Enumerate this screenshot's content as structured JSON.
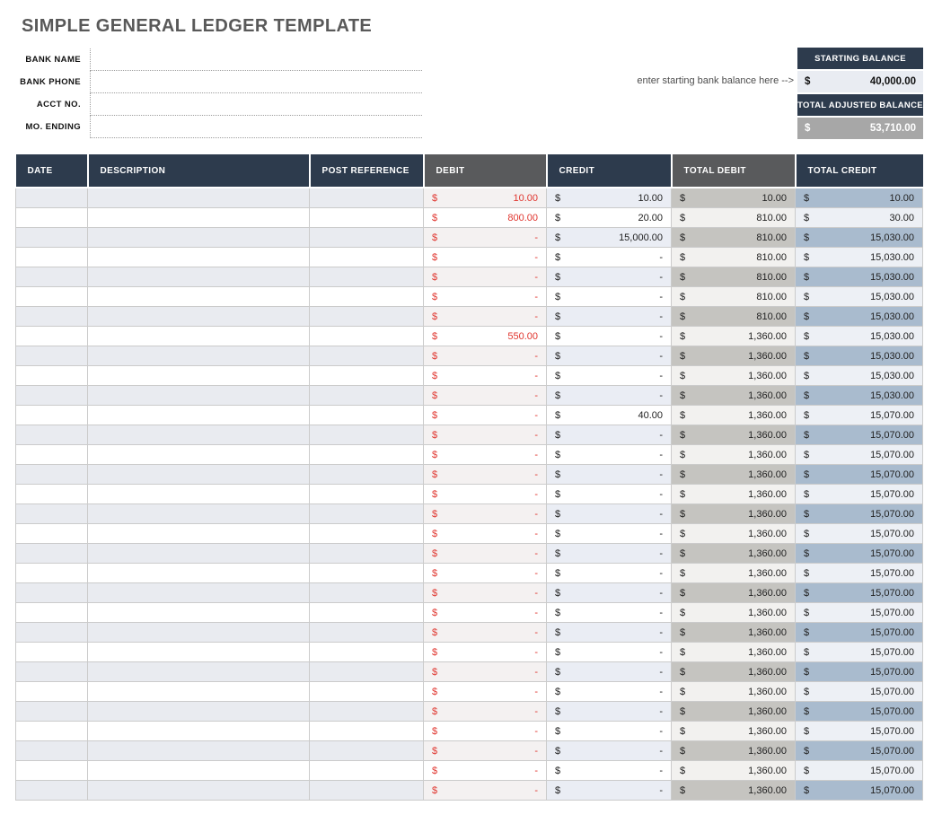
{
  "page_title": "SIMPLE GENERAL LEDGER TEMPLATE",
  "bank_info": {
    "fields": [
      {
        "label": "BANK NAME",
        "value": ""
      },
      {
        "label": "BANK PHONE",
        "value": ""
      },
      {
        "label": "ACCT NO.",
        "value": ""
      },
      {
        "label": "MO. ENDING",
        "value": ""
      }
    ]
  },
  "balance_panel": {
    "hint": "enter starting bank balance here -->",
    "starting": {
      "label": "STARTING BALANCE",
      "currency": "$",
      "value": "40,000.00"
    },
    "adjusted": {
      "label": "TOTAL ADJUSTED BALANCE",
      "currency": "$",
      "value": "53,710.00"
    }
  },
  "ledger_table": {
    "columns": [
      {
        "label": "DATE"
      },
      {
        "label": "DESCRIPTION"
      },
      {
        "label": "POST REFERENCE"
      },
      {
        "label": "DEBIT"
      },
      {
        "label": "CREDIT"
      },
      {
        "label": "TOTAL DEBIT"
      },
      {
        "label": "TOTAL CREDIT"
      }
    ],
    "currency": "$",
    "rows": [
      {
        "date": "",
        "description": "",
        "post_reference": "",
        "debit": "10.00",
        "credit": "10.00",
        "total_debit": "10.00",
        "total_credit": "10.00"
      },
      {
        "date": "",
        "description": "",
        "post_reference": "",
        "debit": "800.00",
        "credit": "20.00",
        "total_debit": "810.00",
        "total_credit": "30.00"
      },
      {
        "date": "",
        "description": "",
        "post_reference": "",
        "debit": "-",
        "credit": "15,000.00",
        "total_debit": "810.00",
        "total_credit": "15,030.00"
      },
      {
        "date": "",
        "description": "",
        "post_reference": "",
        "debit": "-",
        "credit": "-",
        "total_debit": "810.00",
        "total_credit": "15,030.00"
      },
      {
        "date": "",
        "description": "",
        "post_reference": "",
        "debit": "-",
        "credit": "-",
        "total_debit": "810.00",
        "total_credit": "15,030.00"
      },
      {
        "date": "",
        "description": "",
        "post_reference": "",
        "debit": "-",
        "credit": "-",
        "total_debit": "810.00",
        "total_credit": "15,030.00"
      },
      {
        "date": "",
        "description": "",
        "post_reference": "",
        "debit": "-",
        "credit": "-",
        "total_debit": "810.00",
        "total_credit": "15,030.00"
      },
      {
        "date": "",
        "description": "",
        "post_reference": "",
        "debit": "550.00",
        "credit": "-",
        "total_debit": "1,360.00",
        "total_credit": "15,030.00"
      },
      {
        "date": "",
        "description": "",
        "post_reference": "",
        "debit": "-",
        "credit": "-",
        "total_debit": "1,360.00",
        "total_credit": "15,030.00"
      },
      {
        "date": "",
        "description": "",
        "post_reference": "",
        "debit": "-",
        "credit": "-",
        "total_debit": "1,360.00",
        "total_credit": "15,030.00"
      },
      {
        "date": "",
        "description": "",
        "post_reference": "",
        "debit": "-",
        "credit": "-",
        "total_debit": "1,360.00",
        "total_credit": "15,030.00"
      },
      {
        "date": "",
        "description": "",
        "post_reference": "",
        "debit": "-",
        "credit": "40.00",
        "total_debit": "1,360.00",
        "total_credit": "15,070.00"
      },
      {
        "date": "",
        "description": "",
        "post_reference": "",
        "debit": "-",
        "credit": "-",
        "total_debit": "1,360.00",
        "total_credit": "15,070.00"
      },
      {
        "date": "",
        "description": "",
        "post_reference": "",
        "debit": "-",
        "credit": "-",
        "total_debit": "1,360.00",
        "total_credit": "15,070.00"
      },
      {
        "date": "",
        "description": "",
        "post_reference": "",
        "debit": "-",
        "credit": "-",
        "total_debit": "1,360.00",
        "total_credit": "15,070.00"
      },
      {
        "date": "",
        "description": "",
        "post_reference": "",
        "debit": "-",
        "credit": "-",
        "total_debit": "1,360.00",
        "total_credit": "15,070.00"
      },
      {
        "date": "",
        "description": "",
        "post_reference": "",
        "debit": "-",
        "credit": "-",
        "total_debit": "1,360.00",
        "total_credit": "15,070.00"
      },
      {
        "date": "",
        "description": "",
        "post_reference": "",
        "debit": "-",
        "credit": "-",
        "total_debit": "1,360.00",
        "total_credit": "15,070.00"
      },
      {
        "date": "",
        "description": "",
        "post_reference": "",
        "debit": "-",
        "credit": "-",
        "total_debit": "1,360.00",
        "total_credit": "15,070.00"
      },
      {
        "date": "",
        "description": "",
        "post_reference": "",
        "debit": "-",
        "credit": "-",
        "total_debit": "1,360.00",
        "total_credit": "15,070.00"
      },
      {
        "date": "",
        "description": "",
        "post_reference": "",
        "debit": "-",
        "credit": "-",
        "total_debit": "1,360.00",
        "total_credit": "15,070.00"
      },
      {
        "date": "",
        "description": "",
        "post_reference": "",
        "debit": "-",
        "credit": "-",
        "total_debit": "1,360.00",
        "total_credit": "15,070.00"
      },
      {
        "date": "",
        "description": "",
        "post_reference": "",
        "debit": "-",
        "credit": "-",
        "total_debit": "1,360.00",
        "total_credit": "15,070.00"
      },
      {
        "date": "",
        "description": "",
        "post_reference": "",
        "debit": "-",
        "credit": "-",
        "total_debit": "1,360.00",
        "total_credit": "15,070.00"
      },
      {
        "date": "",
        "description": "",
        "post_reference": "",
        "debit": "-",
        "credit": "-",
        "total_debit": "1,360.00",
        "total_credit": "15,070.00"
      },
      {
        "date": "",
        "description": "",
        "post_reference": "",
        "debit": "-",
        "credit": "-",
        "total_debit": "1,360.00",
        "total_credit": "15,070.00"
      },
      {
        "date": "",
        "description": "",
        "post_reference": "",
        "debit": "-",
        "credit": "-",
        "total_debit": "1,360.00",
        "total_credit": "15,070.00"
      },
      {
        "date": "",
        "description": "",
        "post_reference": "",
        "debit": "-",
        "credit": "-",
        "total_debit": "1,360.00",
        "total_credit": "15,070.00"
      },
      {
        "date": "",
        "description": "",
        "post_reference": "",
        "debit": "-",
        "credit": "-",
        "total_debit": "1,360.00",
        "total_credit": "15,070.00"
      },
      {
        "date": "",
        "description": "",
        "post_reference": "",
        "debit": "-",
        "credit": "-",
        "total_debit": "1,360.00",
        "total_credit": "15,070.00"
      },
      {
        "date": "",
        "description": "",
        "post_reference": "",
        "debit": "-",
        "credit": "-",
        "total_debit": "1,360.00",
        "total_credit": "15,070.00"
      }
    ]
  },
  "colors": {
    "navy": "#2d3b4d",
    "header_gray": "#595a5c",
    "debit_red": "#e0362f",
    "row_shade": "#e9ebf0",
    "debit_shade": "#f4f1f1",
    "credit_shade": "#eaedf4",
    "total_debit_shade": "#c5c4c0",
    "total_debit_light": "#f2f1ef",
    "total_credit_shade": "#a9bbce",
    "total_credit_light": "#edf0f5",
    "starting_value_bg": "#e9ecf2",
    "adjusted_value_bg": "#a7a7a7"
  }
}
